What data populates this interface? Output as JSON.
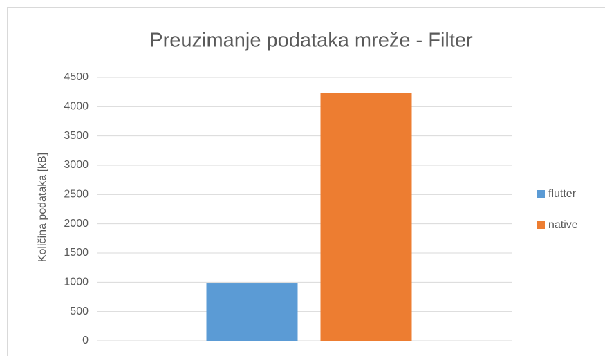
{
  "chart_data": {
    "type": "bar",
    "title": "Preuzimanje podataka mreže - Filter",
    "y_label": "Količina podataka [kB]",
    "categories": [
      null
    ],
    "series": [
      {
        "name": "flutter",
        "color": "#5b9bd5",
        "values": [
          980
        ]
      },
      {
        "name": "native",
        "color": "#ed7d31",
        "values": [
          4230
        ]
      }
    ],
    "ylim": [
      0,
      4500
    ],
    "yticks": [
      0,
      500,
      1000,
      1500,
      2000,
      2500,
      3000,
      3500,
      4000,
      4500
    ],
    "grid": true,
    "legend": "right"
  }
}
